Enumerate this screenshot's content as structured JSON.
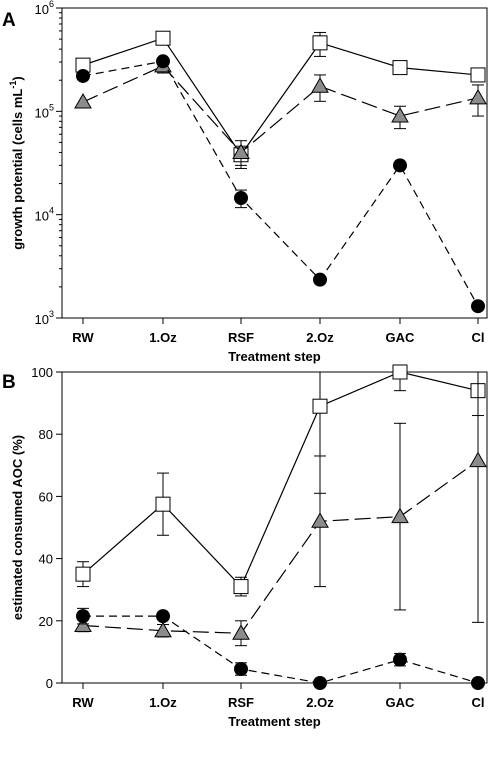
{
  "chart_data": [
    {
      "panel_label": "A",
      "type": "line",
      "yscale": "log",
      "categories": [
        "RW",
        "1.Oz",
        "RSF",
        "2.Oz",
        "GAC",
        "Cl"
      ],
      "xlabel": "Treatment step",
      "ylabel_main": "growth potential (cells mL",
      "ylabel_sup": "-1",
      "ylabel_end": ")",
      "ylim": [
        1000,
        1000000
      ],
      "yticks": [
        {
          "value": 1000,
          "base": "10",
          "exp": "3"
        },
        {
          "value": 10000,
          "base": "10",
          "exp": "4"
        },
        {
          "value": 100000,
          "base": "10",
          "exp": "5"
        },
        {
          "value": 1000000,
          "base": "10",
          "exp": "6"
        }
      ],
      "series": [
        {
          "marker": "open-square",
          "line": "solid",
          "values": [
            280000,
            510000,
            38000,
            460000,
            265000,
            225000
          ],
          "err": [
            null,
            50000,
            8000,
            120000,
            null,
            20000
          ]
        },
        {
          "marker": "gray-triangle",
          "line": "long-dash",
          "values": [
            123000,
            275000,
            40000,
            175000,
            90000,
            135000
          ],
          "err": [
            null,
            40000,
            12000,
            50000,
            22000,
            45000
          ]
        },
        {
          "marker": "black-circle",
          "line": "short-dash",
          "values": [
            220000,
            305000,
            14500,
            2350,
            30000,
            1300
          ],
          "err": [
            null,
            null,
            2800,
            null,
            null,
            null
          ]
        }
      ]
    },
    {
      "panel_label": "B",
      "type": "line",
      "categories": [
        "RW",
        "1.Oz",
        "RSF",
        "2.Oz",
        "GAC",
        "Cl"
      ],
      "xlabel": "Treatment step",
      "ylabel": "estimated consumed AOC (%)",
      "ylim": [
        0,
        100
      ],
      "yticks": [
        "0",
        "20",
        "40",
        "60",
        "80",
        "100"
      ],
      "series": [
        {
          "marker": "open-square",
          "line": "solid",
          "values": [
            35,
            57.5,
            31,
            89,
            100,
            94
          ],
          "err": [
            4,
            10,
            3,
            28,
            6,
            8
          ]
        },
        {
          "marker": "gray-triangle",
          "line": "long-dash",
          "values": [
            18.5,
            16.8,
            16,
            52,
            53.5,
            71.5
          ],
          "err": [
            2,
            2,
            4,
            21,
            30,
            52
          ]
        },
        {
          "marker": "black-circle",
          "line": "short-dash",
          "values": [
            21.5,
            21.5,
            4.5,
            0,
            7.5,
            0
          ],
          "err": [
            2.5,
            null,
            2,
            null,
            2,
            null
          ]
        }
      ]
    }
  ]
}
